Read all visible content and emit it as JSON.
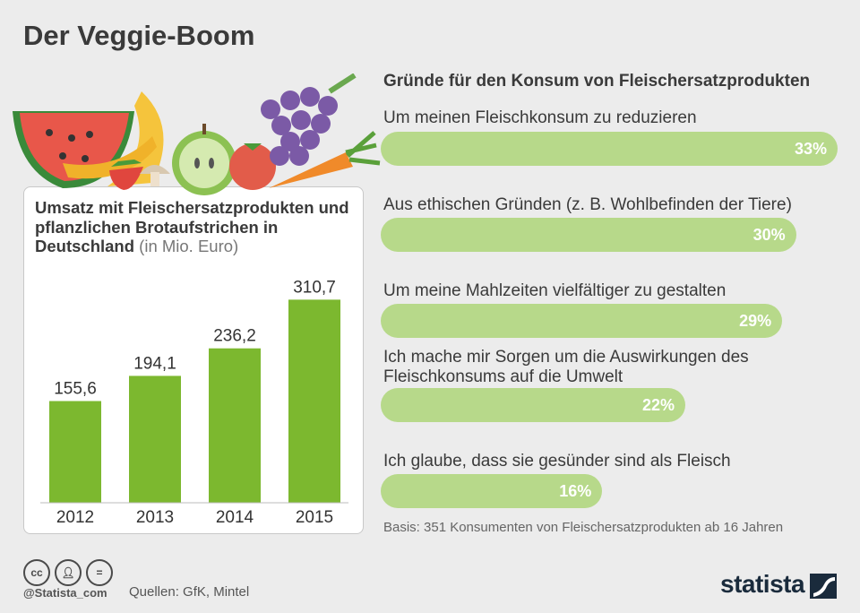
{
  "title": "Der Veggie-Boom",
  "bar_panel": {
    "title": "Umsatz mit Fleischersatzprodukten und pflanzlichen Brotaufstrichen in Deutschland",
    "unit": "(in Mio. Euro)"
  },
  "reasons_title": "Gründe für den Konsum von Fleischersatzprodukten",
  "reasons": [
    {
      "label": "Um meinen Fleischkonsum zu reduzieren",
      "value": 33,
      "pct": "33%"
    },
    {
      "label": "Aus ethischen Gründen (z. B. Wohlbefinden der Tiere)",
      "value": 30,
      "pct": "30%"
    },
    {
      "label": "Um meine Mahlzeiten vielfältiger zu gestalten",
      "value": 29,
      "pct": "29%"
    },
    {
      "label": "Ich mache mir Sorgen um die Auswirkungen des Fleischkonsums auf die Umwelt",
      "value": 22,
      "pct": "22%"
    },
    {
      "label": "Ich glaube, dass sie gesünder sind als Fleisch",
      "value": 16,
      "pct": "16%"
    }
  ],
  "basis": "Basis: 351 Konsumenten von Fleischersatzprodukten ab 16 Jahren",
  "footer": {
    "handle": "@Statista_com",
    "sources": "Quellen: GfK, Mintel",
    "brand": "statista",
    "icons": [
      "cc-icon",
      "person-icon",
      "equals-icon"
    ]
  },
  "colors": {
    "bar": "#7cb82f",
    "reason_bar": "#b7d98a"
  },
  "chart_data": [
    {
      "type": "bar",
      "title": "Umsatz mit Fleischersatzprodukten und pflanzlichen Brotaufstrichen in Deutschland (in Mio. Euro)",
      "categories": [
        "2012",
        "2013",
        "2014",
        "2015"
      ],
      "values": [
        155.6,
        194.1,
        236.2,
        310.7
      ],
      "labels": [
        "155,6",
        "194,1",
        "236,2",
        "310,7"
      ],
      "ylim": [
        0,
        340
      ],
      "grid": false
    },
    {
      "type": "bar",
      "orientation": "horizontal",
      "title": "Gründe für den Konsum von Fleischersatzprodukten",
      "categories": [
        "Um meinen Fleischkonsum zu reduzieren",
        "Aus ethischen Gründen (z. B. Wohlbefinden der Tiere)",
        "Um meine Mahlzeiten vielfältiger zu gestalten",
        "Ich mache mir Sorgen um die Auswirkungen des Fleischkonsums auf die Umwelt",
        "Ich glaube, dass sie gesünder sind als Fleisch"
      ],
      "values": [
        33,
        30,
        29,
        22,
        16
      ],
      "unit": "%"
    }
  ]
}
